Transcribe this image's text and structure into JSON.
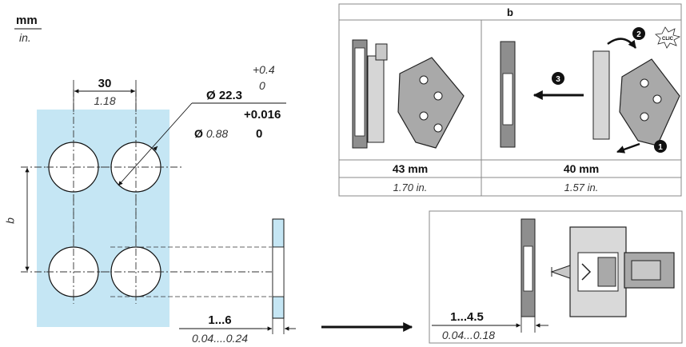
{
  "units": {
    "primary": "mm",
    "secondary": "in."
  },
  "panel_cutout": {
    "spacing_mm": "30",
    "spacing_in": "1.18",
    "hole_dia_mm": "Ø 22.3",
    "hole_tol_mm_plus": "+0.4",
    "hole_tol_mm_minus": "0",
    "hole_dia_in": "Ø 0.88",
    "hole_dia_in_prefix": "Ø",
    "hole_dia_in_value": "0.88",
    "hole_tol_in_plus": "+0.016",
    "hole_tol_in_minus": "0",
    "row_spacing_label": "b"
  },
  "panel_thickness": {
    "mm": "1...6",
    "in": "0.04....0.24"
  },
  "table_b": {
    "header": "b",
    "markers": {
      "m1": "1",
      "m2": "2",
      "m3": "3"
    },
    "clic_label": "CLIC",
    "col1": {
      "mm": "43 mm",
      "in": "1.70 in."
    },
    "col2": {
      "mm": "40 mm",
      "in": "1.57 in."
    }
  },
  "panel_thickness_2": {
    "mm": "1...4.5",
    "in": "0.04...0.18"
  },
  "colors": {
    "panel_fill": "#c5e6f4",
    "ink": "#111111",
    "device_gray": "#a9a9a9",
    "panel_gray": "#8e8e8e"
  }
}
